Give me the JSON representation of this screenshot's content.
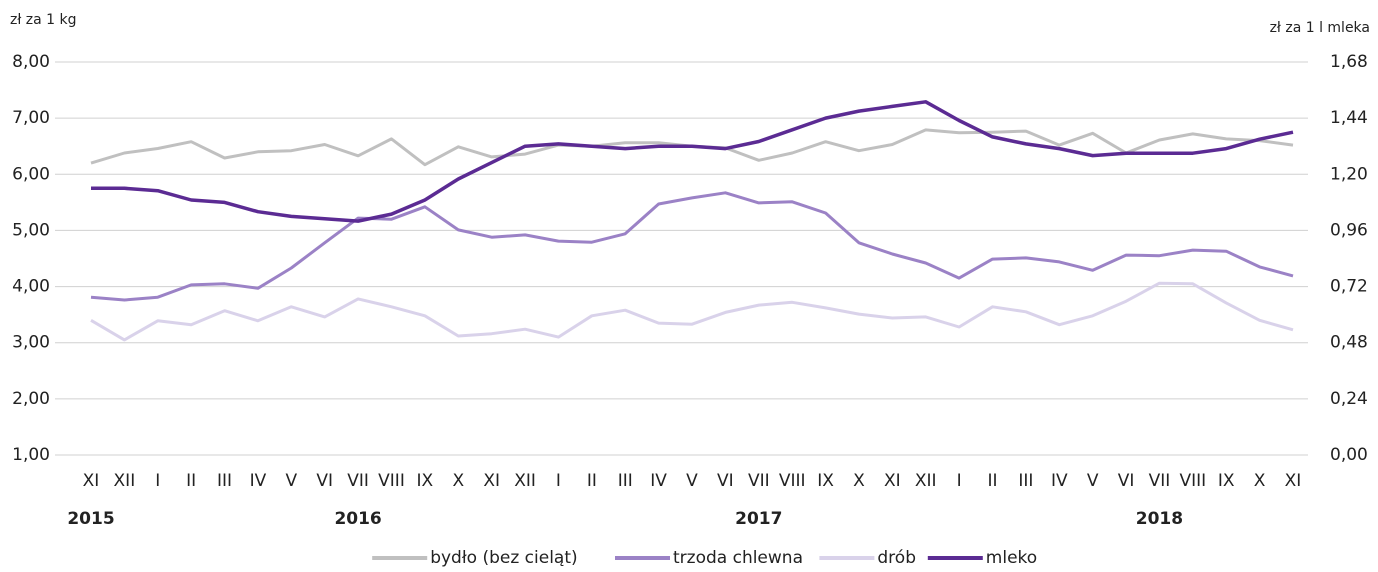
{
  "chart_data": {
    "type": "line",
    "y_axis_label": "zł za 1 kg",
    "y2_axis_label": "zł za 1 l mleka",
    "categories": [
      "XI",
      "XII",
      "I",
      "II",
      "III",
      "IV",
      "V",
      "VI",
      "VII",
      "VIII",
      "IX",
      "X",
      "XI",
      "XII",
      "I",
      "II",
      "III",
      "IV",
      "V",
      "VI",
      "VII",
      "VIII",
      "IX",
      "X",
      "XI",
      "XII",
      "I",
      "II",
      "III",
      "IV",
      "V",
      "VI",
      "VII",
      "VIII",
      "IX",
      "X",
      "XI"
    ],
    "years": [
      "2015",
      null,
      null,
      null,
      null,
      null,
      null,
      null,
      "2016",
      null,
      null,
      null,
      null,
      null,
      null,
      null,
      null,
      null,
      null,
      null,
      "2017",
      null,
      null,
      null,
      null,
      null,
      null,
      null,
      null,
      null,
      null,
      null,
      "2018",
      null,
      null,
      null,
      null
    ],
    "ylim": [
      1,
      8
    ],
    "yticks": [
      {
        "value": 1,
        "label": "1,00"
      },
      {
        "value": 2,
        "label": "2,00"
      },
      {
        "value": 3,
        "label": "3,00"
      },
      {
        "value": 4,
        "label": "4,00"
      },
      {
        "value": 5,
        "label": "5,00"
      },
      {
        "value": 6,
        "label": "6,00"
      },
      {
        "value": 7,
        "label": "7,00"
      },
      {
        "value": 8,
        "label": "8,00"
      }
    ],
    "y2lim": [
      0,
      1.68
    ],
    "y2ticks": [
      {
        "value": 0,
        "label": "0,00"
      },
      {
        "value": 0.24,
        "label": "0,24"
      },
      {
        "value": 0.48,
        "label": "0,48"
      },
      {
        "value": 0.72,
        "label": "0,72"
      },
      {
        "value": 0.96,
        "label": "0,96"
      },
      {
        "value": 1.2,
        "label": "1,20"
      },
      {
        "value": 1.44,
        "label": "1,44"
      },
      {
        "value": 1.68,
        "label": "1,68"
      }
    ],
    "grid": true,
    "legend": "bottom",
    "series": [
      {
        "name": "bydło (bez cieląt)",
        "color": "#c0c0c0",
        "values": [
          6.2,
          6.38,
          6.46,
          6.58,
          6.29,
          6.4,
          6.42,
          6.53,
          6.33,
          6.63,
          6.17,
          6.49,
          6.31,
          6.36,
          6.52,
          6.5,
          6.56,
          6.56,
          6.5,
          6.47,
          6.25,
          6.38,
          6.58,
          6.42,
          6.53,
          6.79,
          6.74,
          6.75,
          6.77,
          6.52,
          6.73,
          6.38,
          6.61,
          6.72,
          6.63,
          6.6,
          6.52
        ]
      },
      {
        "name": "trzoda chlewna",
        "color": "#9b82c6",
        "values": [
          3.81,
          3.76,
          3.81,
          4.03,
          4.05,
          3.97,
          4.33,
          4.78,
          5.22,
          5.2,
          5.42,
          5.01,
          4.88,
          4.92,
          4.81,
          4.79,
          4.94,
          5.47,
          5.58,
          5.67,
          5.49,
          5.51,
          5.31,
          4.78,
          4.58,
          4.42,
          4.15,
          4.49,
          4.51,
          4.44,
          4.29,
          4.56,
          4.55,
          4.65,
          4.63,
          4.35,
          4.19
        ]
      },
      {
        "name": "drób",
        "color": "#d9d2ea",
        "values": [
          3.4,
          3.05,
          3.39,
          3.32,
          3.57,
          3.39,
          3.64,
          3.46,
          3.78,
          3.64,
          3.48,
          3.12,
          3.16,
          3.24,
          3.1,
          3.48,
          3.58,
          3.35,
          3.33,
          3.54,
          3.67,
          3.72,
          3.62,
          3.51,
          3.44,
          3.46,
          3.28,
          3.64,
          3.55,
          3.32,
          3.48,
          3.74,
          4.06,
          4.05,
          3.71,
          3.4,
          3.23
        ]
      },
      {
        "name": "mleko",
        "color": "#5b2b93",
        "axis": "y2",
        "values": [
          1.14,
          1.14,
          1.13,
          1.09,
          1.08,
          1.04,
          1.02,
          1.01,
          1.0,
          1.03,
          1.09,
          1.18,
          1.25,
          1.32,
          1.33,
          1.32,
          1.31,
          1.32,
          1.32,
          1.31,
          1.34,
          1.39,
          1.44,
          1.47,
          1.49,
          1.51,
          1.43,
          1.36,
          1.33,
          1.31,
          1.28,
          1.29,
          1.29,
          1.29,
          1.31,
          1.35,
          1.38
        ]
      }
    ]
  }
}
